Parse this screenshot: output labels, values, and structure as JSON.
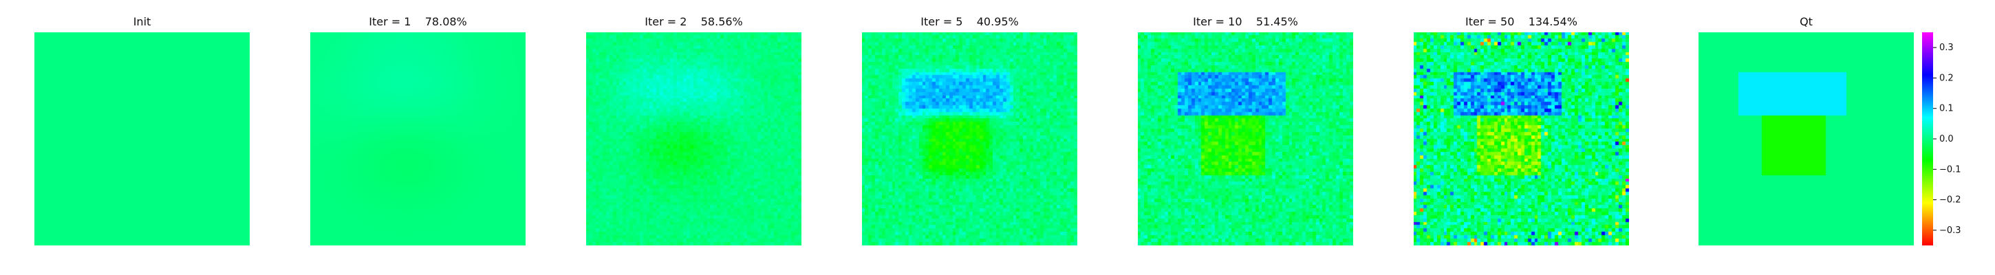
{
  "panels": [
    {
      "title": "Init",
      "noise": 0.0,
      "blur": 0,
      "top": 0.0,
      "bottom": 0.0,
      "speckle": 0.0
    },
    {
      "title": "Iter = 1    78.08%",
      "noise": 0.0,
      "blur": 9,
      "top": 0.05,
      "bottom": -0.035,
      "speckle": 0.0
    },
    {
      "title": "Iter = 2    58.56%",
      "noise": 0.012,
      "blur": 5,
      "top": 0.065,
      "bottom": -0.055,
      "speckle": 0.0
    },
    {
      "title": "Iter = 5    40.95%",
      "noise": 0.022,
      "blur": 1,
      "top": 0.105,
      "bottom": -0.075,
      "speckle": 0.0
    },
    {
      "title": "Iter = 10    51.45%",
      "noise": 0.03,
      "blur": 0,
      "top": 0.115,
      "bottom": -0.085,
      "speckle": 0.0
    },
    {
      "title": "Iter = 50    134.54%",
      "noise": 0.055,
      "blur": 0,
      "top": 0.125,
      "bottom": -0.12,
      "speckle": 0.06
    },
    {
      "title": "Qt",
      "noise": 0.0,
      "blur": 0,
      "top": 0.08,
      "bottom": -0.08,
      "speckle": 0.0
    }
  ],
  "colorbar": {
    "vmin": -0.35,
    "vmax": 0.35,
    "ticks": [
      "0.3",
      "0.2",
      "0.1",
      "0.0",
      "−0.1",
      "−0.2",
      "−0.3"
    ],
    "tick_values": [
      0.3,
      0.2,
      0.1,
      0.0,
      -0.1,
      -0.2,
      -0.3
    ]
  },
  "colormap": [
    "#ff0000",
    "#ffff00",
    "#00ff00",
    "#00ffff",
    "#0000ff",
    "#ff00ff"
  ]
}
